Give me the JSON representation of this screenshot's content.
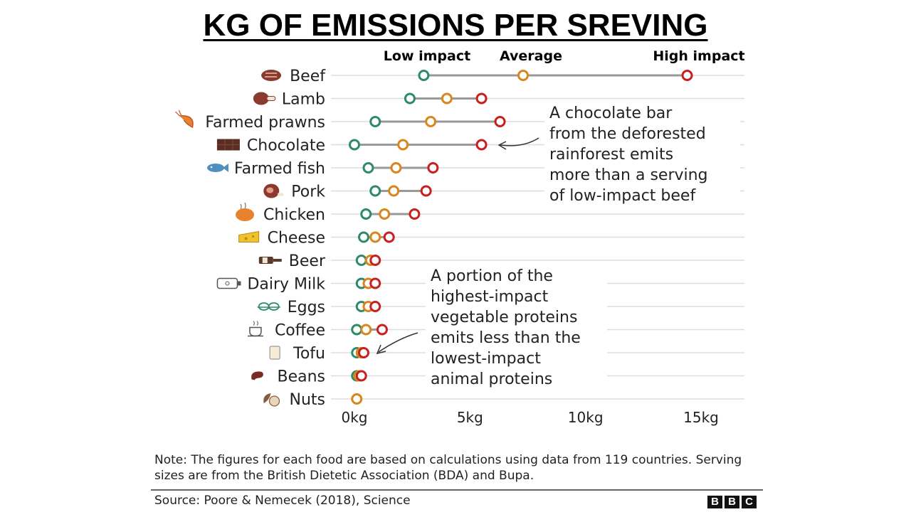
{
  "title": "KG OF EMISSIONS PER SREVING",
  "legend": {
    "low": {
      "label": "Low impact",
      "color": "#2e8b6a"
    },
    "avg": {
      "label": "Average",
      "color": "#d9861c"
    },
    "high": {
      "label": "High impact",
      "color": "#c8201f"
    }
  },
  "chart_data": {
    "type": "dot-range",
    "title": "KG OF EMISSIONS PER SREVING",
    "xlabel": "",
    "ylabel": "",
    "xlim": [
      0,
      16
    ],
    "xticks": [
      0,
      5,
      10,
      15
    ],
    "tick_labels": [
      "0kg",
      "5kg",
      "10kg",
      "15kg"
    ],
    "series_names": [
      "Low impact",
      "Average",
      "High impact"
    ],
    "categories": [
      "Beef",
      "Lamb",
      "Farmed prawns",
      "Chocolate",
      "Farmed fish",
      "Pork",
      "Chicken",
      "Cheese",
      "Beer",
      "Dairy Milk",
      "Eggs",
      "Coffee",
      "Tofu",
      "Beans",
      "Nuts"
    ],
    "icons": [
      "steak-icon",
      "lamb-chop-icon",
      "prawn-icon",
      "chocolate-bar-icon",
      "fish-icon",
      "ham-icon",
      "roast-chicken-icon",
      "cheese-icon",
      "beer-bottle-icon",
      "milk-carton-icon",
      "eggs-icon",
      "coffee-cup-icon",
      "tofu-icon",
      "bean-icon",
      "nut-icon"
    ],
    "low": [
      3.0,
      2.4,
      0.9,
      0.0,
      0.6,
      0.9,
      0.5,
      0.4,
      0.3,
      0.3,
      0.3,
      0.1,
      0.1,
      0.1,
      null
    ],
    "avg": [
      7.3,
      4.0,
      3.3,
      2.1,
      1.8,
      1.7,
      1.3,
      0.9,
      0.7,
      0.6,
      0.6,
      0.5,
      0.3,
      0.2,
      0.1
    ],
    "high": [
      14.4,
      5.5,
      6.3,
      5.5,
      3.4,
      3.1,
      2.6,
      1.5,
      0.9,
      0.9,
      0.9,
      1.2,
      0.4,
      0.3,
      null
    ]
  },
  "annotations": [
    {
      "lines": [
        "A chocolate bar",
        "from the deforested",
        "rainforest emits",
        "more than a serving",
        "of low-impact beef"
      ]
    },
    {
      "lines": [
        "A portion of the",
        "highest-impact",
        "vegetable proteins",
        "emits less than the",
        "lowest-impact",
        "animal proteins"
      ]
    }
  ],
  "note": "Note: The figures for each food are based on calculations using data from 119 countries. Serving sizes are from the British Dietetic Association (BDA) and Bupa.",
  "source": "Source: Poore & Nemecek (2018), Science",
  "logo": [
    "B",
    "B",
    "C"
  ]
}
